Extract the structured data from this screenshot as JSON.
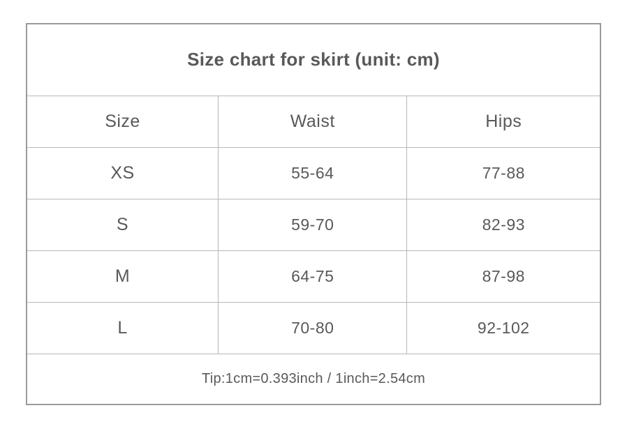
{
  "chart_data": {
    "type": "table",
    "title": "Size chart for skirt (unit: cm)",
    "unit": "cm",
    "columns": [
      "Size",
      "Waist",
      "Hips"
    ],
    "rows": [
      [
        "XS",
        "55-64",
        "77-88"
      ],
      [
        "S",
        "59-70",
        "82-93"
      ],
      [
        "M",
        "64-75",
        "87-98"
      ],
      [
        "L",
        "70-80",
        "92-102"
      ]
    ],
    "footer": "Tip:1cm=0.393inch / 1inch=2.54cm"
  },
  "colors": {
    "outer_border": "#9a9a9a",
    "inner_border": "#b7b7b7",
    "title_text": "#4a4a4a",
    "body_text": "#595959",
    "background": "#ffffff"
  }
}
